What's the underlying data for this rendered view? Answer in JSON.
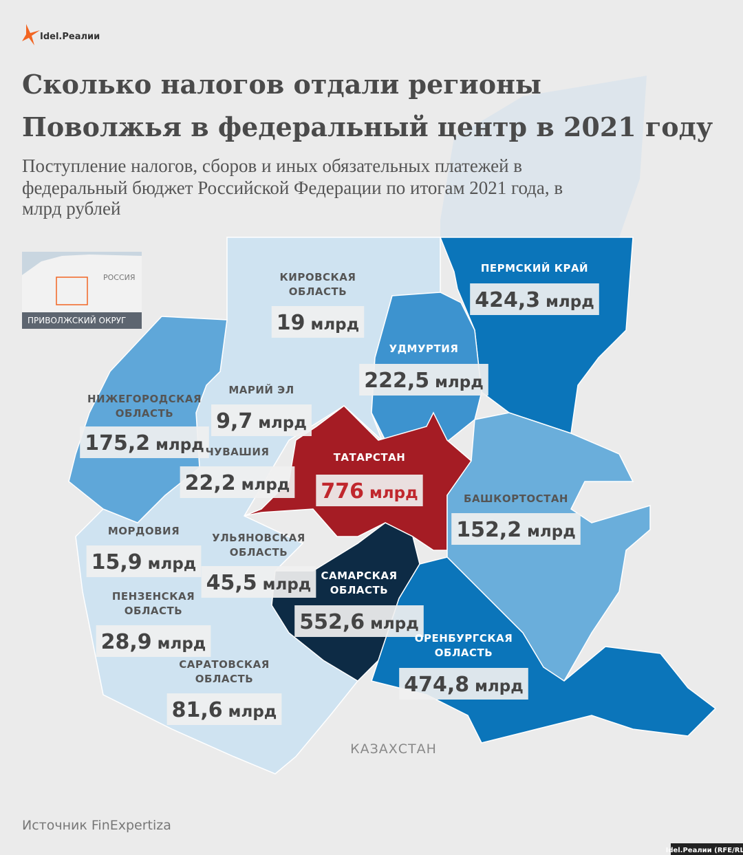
{
  "logo": "Idel.Реалии",
  "header": {
    "title": [
      "Сколько налогов отдали регионы",
      "Поволжья в федеральный центр в 2021 году"
    ],
    "subtitle": [
      "Поступление налогов, сборов и иных обязательных платежей в",
      "федеральный бюджет Российской Федерации по итогам 2021 года, в",
      "млрд рублей"
    ]
  },
  "inset": {
    "country": "РОССИЯ",
    "district": "ПРИВОЛЖСКИЙ ОКРУГ"
  },
  "regions": [
    {
      "name": [
        "КИРОВСКАЯ",
        "ОБЛАСТЬ"
      ],
      "value": "19",
      "unit": "млрд",
      "color": "#cfe3f1"
    },
    {
      "name": [
        "ПЕРМСКИЙ КРАЙ"
      ],
      "value": "424,3",
      "unit": "млрд",
      "color": "#0b75ba"
    },
    {
      "name": [
        "УДМУРТИЯ"
      ],
      "value": "222,5",
      "unit": "млрд",
      "color": "#3d93cf"
    },
    {
      "name": [
        "НИЖЕГОРОДСКАЯ",
        "ОБЛАСТЬ"
      ],
      "value": "175,2",
      "unit": "млрд",
      "color": "#5fa7d9"
    },
    {
      "name": [
        "МАРИЙ ЭЛ"
      ],
      "value": "9,7",
      "unit": "млрд",
      "color": "#cfe3f1"
    },
    {
      "name": [
        "ЧУВАШИЯ"
      ],
      "value": "22,2",
      "unit": "млрд",
      "color": "#cfe3f1"
    },
    {
      "name": [
        "ТАТАРСТАН"
      ],
      "value": "776",
      "unit": "млрд",
      "color": "#a51c24"
    },
    {
      "name": [
        "БАШКОРТОСТАН"
      ],
      "value": "152,2",
      "unit": "млрд",
      "color": "#6aaedb"
    },
    {
      "name": [
        "МОРДОВИЯ"
      ],
      "value": "15,9",
      "unit": "млрд",
      "color": "#cfe3f1"
    },
    {
      "name": [
        "УЛЬЯНОВСКАЯ",
        "ОБЛАСТЬ"
      ],
      "value": "45,5",
      "unit": "млрд",
      "color": "#cfe3f1"
    },
    {
      "name": [
        "САМАРСКАЯ",
        "ОБЛАСТЬ"
      ],
      "value": "552,6",
      "unit": "млрд",
      "color": "#0d2b45"
    },
    {
      "name": [
        "ПЕНЗЕНСКАЯ",
        "ОБЛАСТЬ"
      ],
      "value": "28,9",
      "unit": "млрд",
      "color": "#cfe3f1"
    },
    {
      "name": [
        "ОРЕНБУРГСКАЯ",
        "ОБЛАСТЬ"
      ],
      "value": "474,8",
      "unit": "млрд",
      "color": "#0b75ba"
    },
    {
      "name": [
        "САРАТОВСКАЯ",
        "ОБЛАСТЬ"
      ],
      "value": "81,6",
      "unit": "млрд",
      "color": "#cfe3f1"
    }
  ],
  "neighbor": "КАЗАХСТАН",
  "source": "Источник FinExpertiza",
  "credit": "Idel.Реалии (RFE/RL)"
}
